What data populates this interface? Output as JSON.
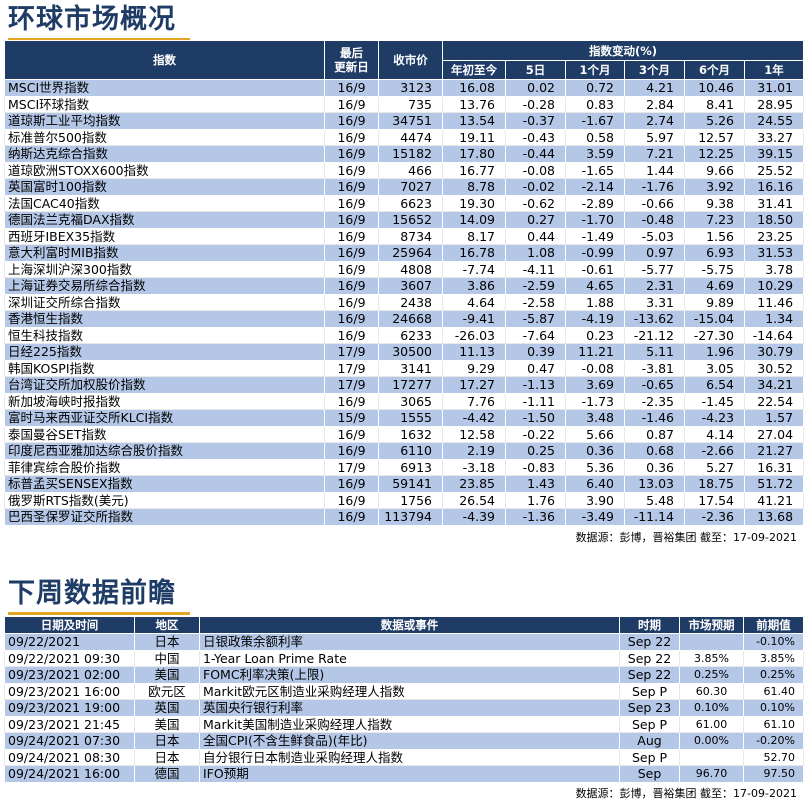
{
  "markets": {
    "title": "环球市场概况",
    "headers": {
      "index": "指数",
      "updated": "最后\n更新日",
      "close": "收市价",
      "change_group": "指数变动(%)",
      "ytd": "年初至今",
      "d5": "5日",
      "m1": "1个月",
      "m3": "3个月",
      "m6": "6个月",
      "y1": "1年"
    },
    "rows": [
      {
        "name": "MSCI世界指数",
        "date": "16/9",
        "close": "3123",
        "ytd": "16.08",
        "d5": "0.02",
        "m1": "0.72",
        "m3": "4.21",
        "m6": "10.46",
        "y1": "31.01"
      },
      {
        "name": "MSCI环球指数",
        "date": "16/9",
        "close": "735",
        "ytd": "13.76",
        "d5": "-0.28",
        "m1": "0.83",
        "m3": "2.84",
        "m6": "8.41",
        "y1": "28.95"
      },
      {
        "name": "道琼斯工业平均指数",
        "date": "16/9",
        "close": "34751",
        "ytd": "13.54",
        "d5": "-0.37",
        "m1": "-1.67",
        "m3": "2.74",
        "m6": "5.26",
        "y1": "24.55"
      },
      {
        "name": "标准普尔500指数",
        "date": "16/9",
        "close": "4474",
        "ytd": "19.11",
        "d5": "-0.43",
        "m1": "0.58",
        "m3": "5.97",
        "m6": "12.57",
        "y1": "33.27"
      },
      {
        "name": "纳斯达克综合指数",
        "date": "16/9",
        "close": "15182",
        "ytd": "17.80",
        "d5": "-0.44",
        "m1": "3.59",
        "m3": "7.21",
        "m6": "12.25",
        "y1": "39.15"
      },
      {
        "name": "道琼欧洲STOXX600指数",
        "date": "16/9",
        "close": "466",
        "ytd": "16.77",
        "d5": "-0.08",
        "m1": "-1.65",
        "m3": "1.44",
        "m6": "9.66",
        "y1": "25.52"
      },
      {
        "name": "英国富时100指数",
        "date": "16/9",
        "close": "7027",
        "ytd": "8.78",
        "d5": "-0.02",
        "m1": "-2.14",
        "m3": "-1.76",
        "m6": "3.92",
        "y1": "16.16"
      },
      {
        "name": "法国CAC40指数",
        "date": "16/9",
        "close": "6623",
        "ytd": "19.30",
        "d5": "-0.62",
        "m1": "-2.89",
        "m3": "-0.66",
        "m6": "9.38",
        "y1": "31.41"
      },
      {
        "name": "德国法兰克福DAX指数",
        "date": "16/9",
        "close": "15652",
        "ytd": "14.09",
        "d5": "0.27",
        "m1": "-1.70",
        "m3": "-0.48",
        "m6": "7.23",
        "y1": "18.50"
      },
      {
        "name": "西班牙IBEX35指数",
        "date": "16/9",
        "close": "8734",
        "ytd": "8.17",
        "d5": "0.44",
        "m1": "-1.49",
        "m3": "-5.03",
        "m6": "1.56",
        "y1": "23.25"
      },
      {
        "name": "意大利富时MIB指数",
        "date": "16/9",
        "close": "25964",
        "ytd": "16.78",
        "d5": "1.08",
        "m1": "-0.99",
        "m3": "0.97",
        "m6": "6.93",
        "y1": "31.53"
      },
      {
        "name": "上海深圳沪深300指数",
        "date": "16/9",
        "close": "4808",
        "ytd": "-7.74",
        "d5": "-4.11",
        "m1": "-0.61",
        "m3": "-5.77",
        "m6": "-5.75",
        "y1": "3.78"
      },
      {
        "name": "上海证券交易所综合指数",
        "date": "16/9",
        "close": "3607",
        "ytd": "3.86",
        "d5": "-2.59",
        "m1": "4.65",
        "m3": "2.31",
        "m6": "4.69",
        "y1": "10.29"
      },
      {
        "name": "深圳证交所综合指数",
        "date": "16/9",
        "close": "2438",
        "ytd": "4.64",
        "d5": "-2.58",
        "m1": "1.88",
        "m3": "3.31",
        "m6": "9.89",
        "y1": "11.46"
      },
      {
        "name": "香港恒生指数",
        "date": "16/9",
        "close": "24668",
        "ytd": "-9.41",
        "d5": "-5.87",
        "m1": "-4.19",
        "m3": "-13.62",
        "m6": "-15.04",
        "y1": "1.34"
      },
      {
        "name": "恒生科技指数",
        "date": "16/9",
        "close": "6233",
        "ytd": "-26.03",
        "d5": "-7.64",
        "m1": "0.23",
        "m3": "-21.12",
        "m6": "-27.30",
        "y1": "-14.64"
      },
      {
        "name": "日经225指数",
        "date": "17/9",
        "close": "30500",
        "ytd": "11.13",
        "d5": "0.39",
        "m1": "11.21",
        "m3": "5.11",
        "m6": "1.96",
        "y1": "30.79"
      },
      {
        "name": "韩国KOSPI指数",
        "date": "17/9",
        "close": "3141",
        "ytd": "9.29",
        "d5": "0.47",
        "m1": "-0.08",
        "m3": "-3.81",
        "m6": "3.05",
        "y1": "30.52"
      },
      {
        "name": "台湾证交所加权股价指数",
        "date": "17/9",
        "close": "17277",
        "ytd": "17.27",
        "d5": "-1.13",
        "m1": "3.69",
        "m3": "-0.65",
        "m6": "6.54",
        "y1": "34.21"
      },
      {
        "name": "新加坡海峡时报指数",
        "date": "16/9",
        "close": "3065",
        "ytd": "7.76",
        "d5": "-1.11",
        "m1": "-1.73",
        "m3": "-2.35",
        "m6": "-1.45",
        "y1": "22.54"
      },
      {
        "name": "富时马来西亚证交所KLCI指数",
        "date": "15/9",
        "close": "1555",
        "ytd": "-4.42",
        "d5": "-1.50",
        "m1": "3.48",
        "m3": "-1.46",
        "m6": "-4.23",
        "y1": "1.57"
      },
      {
        "name": "泰国曼谷SET指数",
        "date": "16/9",
        "close": "1632",
        "ytd": "12.58",
        "d5": "-0.22",
        "m1": "5.66",
        "m3": "0.87",
        "m6": "4.14",
        "y1": "27.04"
      },
      {
        "name": "印度尼西亚雅加达综合股价指数",
        "date": "16/9",
        "close": "6110",
        "ytd": "2.19",
        "d5": "0.25",
        "m1": "0.36",
        "m3": "0.68",
        "m6": "-2.66",
        "y1": "21.27"
      },
      {
        "name": "菲律宾综合股价指数",
        "date": "17/9",
        "close": "6913",
        "ytd": "-3.18",
        "d5": "-0.83",
        "m1": "5.36",
        "m3": "0.36",
        "m6": "5.27",
        "y1": "16.31"
      },
      {
        "name": "标普孟买SENSEX指数",
        "date": "16/9",
        "close": "59141",
        "ytd": "23.85",
        "d5": "1.43",
        "m1": "6.40",
        "m3": "13.03",
        "m6": "18.75",
        "y1": "51.72"
      },
      {
        "name": "俄罗斯RTS指数(美元)",
        "date": "16/9",
        "close": "1756",
        "ytd": "26.54",
        "d5": "1.76",
        "m1": "3.90",
        "m3": "5.48",
        "m6": "17.54",
        "y1": "41.21"
      },
      {
        "name": "巴西圣保罗证交所指数",
        "date": "16/9",
        "close": "113794",
        "ytd": "-4.39",
        "d5": "-1.36",
        "m1": "-3.49",
        "m3": "-11.14",
        "m6": "-2.36",
        "y1": "13.68"
      }
    ],
    "source": "数据源：彭博，晋裕集团 截至：17-09-2021"
  },
  "calendar": {
    "title": "下周数据前瞻",
    "headers": {
      "datetime": "日期及时间",
      "region": "地区",
      "event": "数据或事件",
      "period": "时期",
      "forecast": "市场预期",
      "previous": "前期值"
    },
    "rows": [
      {
        "datetime": "09/22/2021",
        "region": "日本",
        "event": "日银政策余额利率",
        "period": "Sep 22",
        "forecast": "",
        "previous": "-0.10%"
      },
      {
        "datetime": "09/22/2021 09:30",
        "region": "中国",
        "event": "1-Year Loan Prime Rate",
        "period": "Sep 22",
        "forecast": "3.85%",
        "previous": "3.85%"
      },
      {
        "datetime": "09/23/2021 02:00",
        "region": "美国",
        "event": "FOMC利率决策(上限)",
        "period": "Sep 22",
        "forecast": "0.25%",
        "previous": "0.25%"
      },
      {
        "datetime": "09/23/2021 16:00",
        "region": "欧元区",
        "event": "Markit欧元区制造业采购经理人指数",
        "period": "Sep P",
        "forecast": "60.30",
        "previous": "61.40"
      },
      {
        "datetime": "09/23/2021 19:00",
        "region": "英国",
        "event": "英国央行银行利率",
        "period": "Sep 23",
        "forecast": "0.10%",
        "previous": "0.10%"
      },
      {
        "datetime": "09/23/2021 21:45",
        "region": "美国",
        "event": "Markit美国制造业采购经理人指数",
        "period": "Sep P",
        "forecast": "61.00",
        "previous": "61.10"
      },
      {
        "datetime": "09/24/2021 07:30",
        "region": "日本",
        "event": "全国CPI(不含生鲜食品)(年比)",
        "period": "Aug",
        "forecast": "0.00%",
        "previous": "-0.20%"
      },
      {
        "datetime": "09/24/2021 08:30",
        "region": "日本",
        "event": "自分银行日本制造业采购经理人指数",
        "period": "Sep P",
        "forecast": "",
        "previous": "52.70"
      },
      {
        "datetime": "09/24/2021 16:00",
        "region": "德国",
        "event": "IFO预期",
        "period": "Sep",
        "forecast": "96.70",
        "previous": "97.50"
      }
    ],
    "source": "数据源：彭博，晋裕集团 截至：17-09-2021"
  }
}
